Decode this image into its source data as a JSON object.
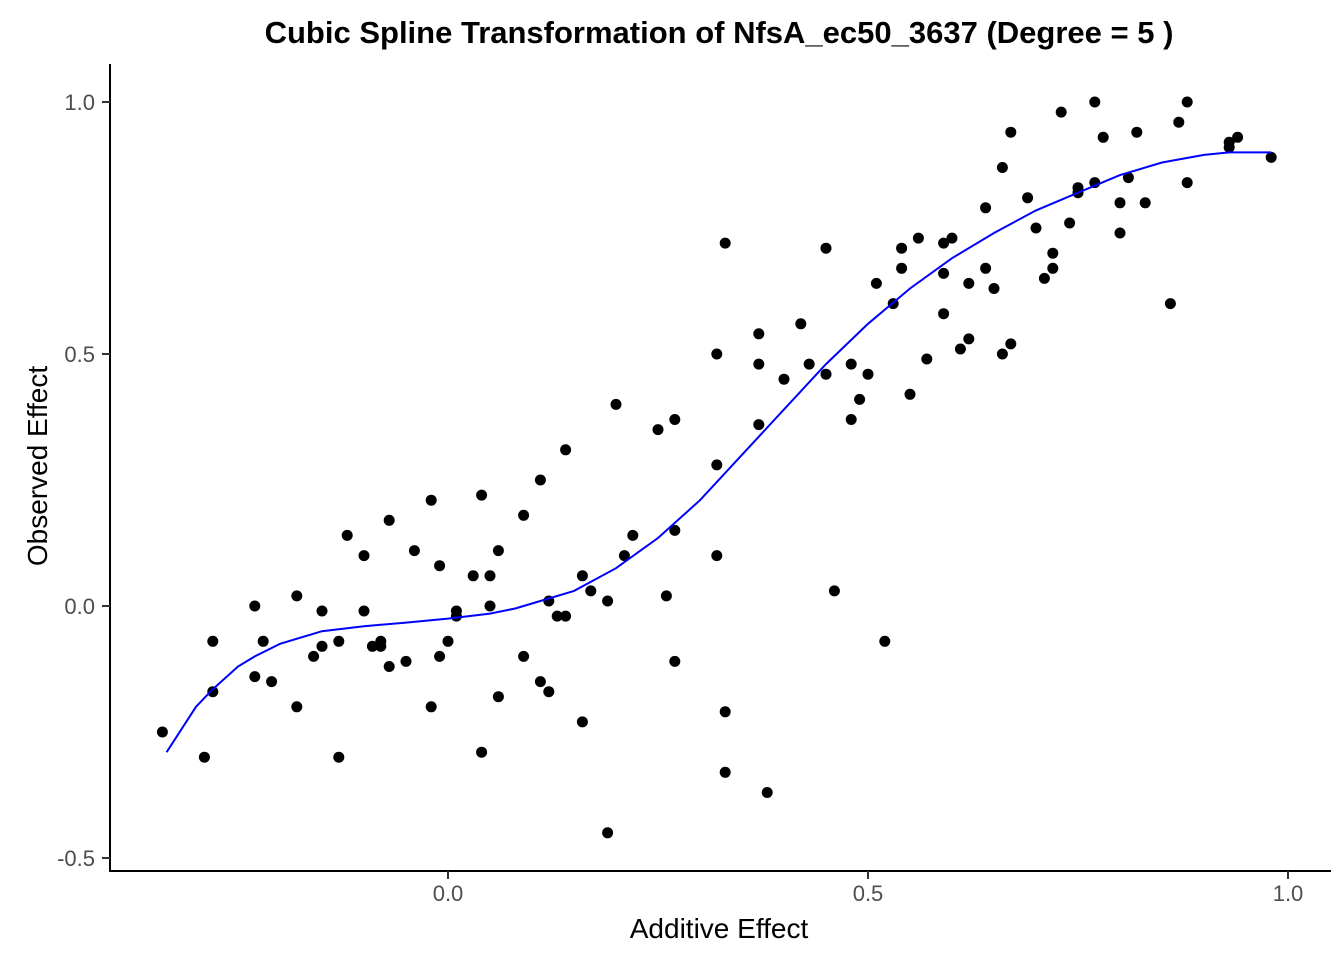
{
  "chart_data": {
    "type": "scatter",
    "title": "Cubic Spline Transformation of NfsA_ec50_3637 (Degree = 5 )",
    "xlabel": "Additive Effect",
    "ylabel": "Observed Effect",
    "xlim": [
      -0.34,
      1.05
    ],
    "ylim": [
      -0.52,
      1.07
    ],
    "xticks": [
      0.0,
      0.5,
      1.0
    ],
    "xtick_labels": [
      "0.0",
      "0.5",
      "1.0"
    ],
    "yticks": [
      -0.5,
      0.0,
      0.5,
      1.0
    ],
    "ytick_labels": [
      "-0.5",
      "0.0",
      "0.5",
      "1.0"
    ],
    "grid": false,
    "colors": {
      "points": "#000000",
      "curve": "#0000ff"
    },
    "points": [
      [
        -0.34,
        -0.25
      ],
      [
        -0.29,
        -0.3
      ],
      [
        -0.28,
        -0.07
      ],
      [
        -0.28,
        -0.17
      ],
      [
        -0.23,
        0.0
      ],
      [
        -0.23,
        -0.14
      ],
      [
        -0.22,
        -0.07
      ],
      [
        -0.21,
        -0.15
      ],
      [
        -0.18,
        -0.2
      ],
      [
        -0.18,
        0.02
      ],
      [
        -0.16,
        -0.1
      ],
      [
        -0.15,
        -0.01
      ],
      [
        -0.15,
        -0.08
      ],
      [
        -0.13,
        -0.3
      ],
      [
        -0.13,
        -0.07
      ],
      [
        -0.12,
        0.14
      ],
      [
        -0.1,
        0.1
      ],
      [
        -0.1,
        -0.01
      ],
      [
        -0.09,
        -0.08
      ],
      [
        -0.08,
        -0.08
      ],
      [
        -0.08,
        -0.07
      ],
      [
        -0.07,
        -0.12
      ],
      [
        -0.07,
        0.17
      ],
      [
        -0.05,
        -0.11
      ],
      [
        -0.04,
        0.11
      ],
      [
        -0.02,
        -0.2
      ],
      [
        -0.02,
        0.21
      ],
      [
        -0.01,
        0.08
      ],
      [
        -0.01,
        -0.1
      ],
      [
        0.0,
        -0.07
      ],
      [
        0.01,
        -0.01
      ],
      [
        0.01,
        -0.02
      ],
      [
        0.03,
        0.06
      ],
      [
        0.04,
        -0.29
      ],
      [
        0.04,
        0.22
      ],
      [
        0.05,
        0.0
      ],
      [
        0.05,
        0.06
      ],
      [
        0.06,
        -0.18
      ],
      [
        0.06,
        0.11
      ],
      [
        0.09,
        -0.1
      ],
      [
        0.09,
        0.18
      ],
      [
        0.11,
        -0.15
      ],
      [
        0.11,
        0.25
      ],
      [
        0.12,
        0.01
      ],
      [
        0.12,
        -0.17
      ],
      [
        0.13,
        -0.02
      ],
      [
        0.14,
        0.31
      ],
      [
        0.14,
        -0.02
      ],
      [
        0.16,
        0.06
      ],
      [
        0.16,
        -0.23
      ],
      [
        0.17,
        0.03
      ],
      [
        0.19,
        -0.45
      ],
      [
        0.19,
        0.01
      ],
      [
        0.2,
        0.4
      ],
      [
        0.21,
        0.1
      ],
      [
        0.22,
        0.14
      ],
      [
        0.25,
        0.35
      ],
      [
        0.26,
        0.02
      ],
      [
        0.27,
        0.37
      ],
      [
        0.27,
        0.15
      ],
      [
        0.27,
        -0.11
      ],
      [
        0.32,
        0.28
      ],
      [
        0.32,
        0.1
      ],
      [
        0.32,
        0.5
      ],
      [
        0.33,
        0.72
      ],
      [
        0.33,
        -0.33
      ],
      [
        0.33,
        -0.21
      ],
      [
        0.37,
        0.54
      ],
      [
        0.37,
        0.48
      ],
      [
        0.37,
        0.36
      ],
      [
        0.38,
        -0.37
      ],
      [
        0.4,
        0.45
      ],
      [
        0.42,
        0.56
      ],
      [
        0.43,
        0.48
      ],
      [
        0.45,
        0.71
      ],
      [
        0.45,
        0.46
      ],
      [
        0.46,
        0.03
      ],
      [
        0.48,
        0.37
      ],
      [
        0.48,
        0.48
      ],
      [
        0.49,
        0.41
      ],
      [
        0.5,
        0.46
      ],
      [
        0.51,
        0.64
      ],
      [
        0.52,
        -0.07
      ],
      [
        0.53,
        0.6
      ],
      [
        0.54,
        0.67
      ],
      [
        0.54,
        0.71
      ],
      [
        0.55,
        0.42
      ],
      [
        0.56,
        0.73
      ],
      [
        0.57,
        0.49
      ],
      [
        0.59,
        0.72
      ],
      [
        0.59,
        0.66
      ],
      [
        0.59,
        0.58
      ],
      [
        0.6,
        0.73
      ],
      [
        0.61,
        0.51
      ],
      [
        0.62,
        0.53
      ],
      [
        0.62,
        0.64
      ],
      [
        0.64,
        0.67
      ],
      [
        0.64,
        0.79
      ],
      [
        0.65,
        0.63
      ],
      [
        0.66,
        0.5
      ],
      [
        0.66,
        0.87
      ],
      [
        0.67,
        0.94
      ],
      [
        0.67,
        0.52
      ],
      [
        0.69,
        0.81
      ],
      [
        0.7,
        0.75
      ],
      [
        0.71,
        0.65
      ],
      [
        0.72,
        0.67
      ],
      [
        0.72,
        0.7
      ],
      [
        0.73,
        0.98
      ],
      [
        0.74,
        0.76
      ],
      [
        0.75,
        0.82
      ],
      [
        0.75,
        0.83
      ],
      [
        0.77,
        1.0
      ],
      [
        0.77,
        0.84
      ],
      [
        0.78,
        0.93
      ],
      [
        0.8,
        0.74
      ],
      [
        0.8,
        0.8
      ],
      [
        0.81,
        0.85
      ],
      [
        0.82,
        0.94
      ],
      [
        0.83,
        0.8
      ],
      [
        0.86,
        0.6
      ],
      [
        0.87,
        0.96
      ],
      [
        0.88,
        1.0
      ],
      [
        0.88,
        0.84
      ],
      [
        0.93,
        0.91
      ],
      [
        0.93,
        0.92
      ],
      [
        0.94,
        0.93
      ],
      [
        0.98,
        0.89
      ]
    ],
    "curve": [
      [
        -0.335,
        -0.29
      ],
      [
        -0.3,
        -0.2
      ],
      [
        -0.28,
        -0.165
      ],
      [
        -0.25,
        -0.12
      ],
      [
        -0.23,
        -0.1
      ],
      [
        -0.2,
        -0.075
      ],
      [
        -0.15,
        -0.05
      ],
      [
        -0.1,
        -0.04
      ],
      [
        -0.05,
        -0.033
      ],
      [
        0.0,
        -0.025
      ],
      [
        0.05,
        -0.015
      ],
      [
        0.08,
        -0.005
      ],
      [
        0.1,
        0.005
      ],
      [
        0.15,
        0.03
      ],
      [
        0.2,
        0.075
      ],
      [
        0.25,
        0.135
      ],
      [
        0.3,
        0.21
      ],
      [
        0.35,
        0.3
      ],
      [
        0.4,
        0.39
      ],
      [
        0.45,
        0.48
      ],
      [
        0.5,
        0.56
      ],
      [
        0.55,
        0.63
      ],
      [
        0.6,
        0.69
      ],
      [
        0.65,
        0.74
      ],
      [
        0.7,
        0.785
      ],
      [
        0.75,
        0.82
      ],
      [
        0.8,
        0.855
      ],
      [
        0.85,
        0.88
      ],
      [
        0.9,
        0.895
      ],
      [
        0.93,
        0.9
      ],
      [
        0.98,
        0.9
      ]
    ]
  }
}
